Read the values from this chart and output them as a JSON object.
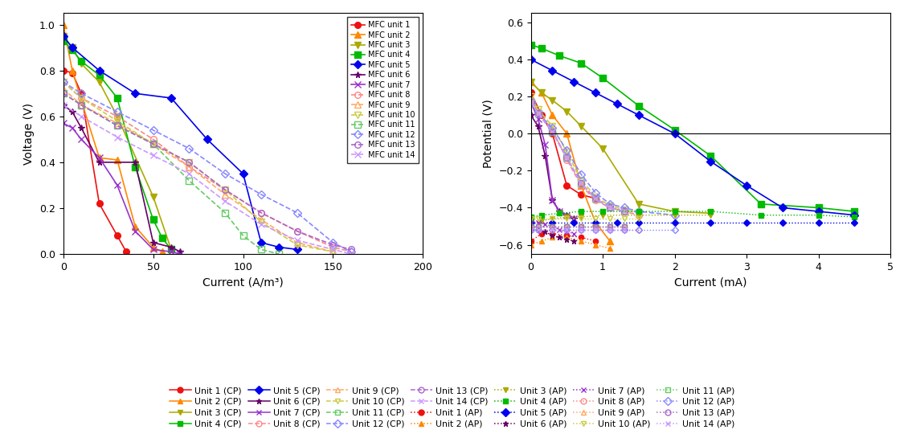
{
  "colors_solid": [
    "#EE1111",
    "#FF8800",
    "#AAAA00",
    "#00BB00",
    "#0000EE",
    "#660066",
    "#9933CC",
    "#FF8888",
    "#FFAA66",
    "#CCCC44",
    "#66CC66",
    "#8888FF",
    "#AA66CC",
    "#CC99FF"
  ],
  "solid_markers": [
    "o",
    "^",
    "v",
    "s",
    "D",
    "*",
    "x"
  ],
  "open_markers": [
    "o",
    "^",
    "v",
    "s",
    "D",
    "o",
    "x"
  ],
  "left_plot": {
    "xlabel": "Current (A/m³)",
    "ylabel": "Voltage (V)",
    "xlim": [
      0,
      200
    ],
    "ylim": [
      0,
      1.05
    ],
    "xticks": [
      0,
      50,
      100,
      150,
      200
    ],
    "yticks": [
      0.0,
      0.2,
      0.4,
      0.6,
      0.8,
      1.0
    ],
    "curves": [
      {
        "unit": 1,
        "ls": "-",
        "filled": true,
        "x": [
          0,
          5,
          10,
          20,
          30,
          35
        ],
        "y": [
          0.8,
          0.79,
          0.7,
          0.22,
          0.08,
          0.01
        ]
      },
      {
        "unit": 2,
        "ls": "-",
        "filled": true,
        "x": [
          0,
          5,
          10,
          20,
          30,
          40,
          50,
          55
        ],
        "y": [
          1.0,
          0.8,
          0.67,
          0.42,
          0.41,
          0.12,
          0.03,
          0.01
        ]
      },
      {
        "unit": 3,
        "ls": "-",
        "filled": true,
        "x": [
          0,
          5,
          10,
          20,
          30,
          50,
          60
        ],
        "y": [
          0.95,
          0.9,
          0.83,
          0.75,
          0.6,
          0.25,
          0.02
        ]
      },
      {
        "unit": 4,
        "ls": "-",
        "filled": true,
        "x": [
          0,
          5,
          10,
          20,
          30,
          40,
          50,
          55,
          60
        ],
        "y": [
          0.93,
          0.89,
          0.84,
          0.78,
          0.68,
          0.38,
          0.15,
          0.07,
          0.02
        ]
      },
      {
        "unit": 5,
        "ls": "-",
        "filled": true,
        "x": [
          0,
          5,
          20,
          40,
          60,
          80,
          100,
          110,
          120,
          130
        ],
        "y": [
          0.95,
          0.9,
          0.8,
          0.7,
          0.68,
          0.5,
          0.35,
          0.05,
          0.03,
          0.02
        ]
      },
      {
        "unit": 6,
        "ls": "-",
        "filled": true,
        "x": [
          0,
          5,
          10,
          20,
          40,
          50,
          60,
          65
        ],
        "y": [
          0.65,
          0.62,
          0.55,
          0.4,
          0.4,
          0.05,
          0.03,
          0.01
        ]
      },
      {
        "unit": 7,
        "ls": "-",
        "filled": true,
        "x": [
          0,
          5,
          10,
          20,
          30,
          40,
          50,
          60,
          65
        ],
        "y": [
          0.57,
          0.55,
          0.5,
          0.42,
          0.3,
          0.1,
          0.02,
          0.01,
          0.0
        ]
      },
      {
        "unit": 8,
        "ls": "--",
        "filled": false,
        "x": [
          0,
          10,
          30,
          50,
          70,
          90,
          110,
          130,
          150,
          160
        ],
        "y": [
          0.75,
          0.68,
          0.6,
          0.5,
          0.38,
          0.28,
          0.18,
          0.1,
          0.03,
          0.01
        ]
      },
      {
        "unit": 9,
        "ls": "--",
        "filled": false,
        "x": [
          0,
          10,
          30,
          50,
          70,
          90,
          110,
          130,
          150
        ],
        "y": [
          0.72,
          0.65,
          0.57,
          0.48,
          0.38,
          0.26,
          0.15,
          0.05,
          0.01
        ]
      },
      {
        "unit": 10,
        "ls": "--",
        "filled": false,
        "x": [
          0,
          10,
          30,
          50,
          70,
          90,
          110,
          130,
          150
        ],
        "y": [
          0.75,
          0.68,
          0.58,
          0.48,
          0.4,
          0.28,
          0.14,
          0.04,
          0.01
        ]
      },
      {
        "unit": 11,
        "ls": "--",
        "filled": false,
        "x": [
          0,
          10,
          30,
          50,
          70,
          90,
          100,
          110,
          120
        ],
        "y": [
          0.7,
          0.65,
          0.56,
          0.48,
          0.32,
          0.18,
          0.08,
          0.02,
          0.0
        ]
      },
      {
        "unit": 12,
        "ls": "--",
        "filled": false,
        "x": [
          0,
          10,
          30,
          50,
          70,
          90,
          110,
          130,
          150,
          160
        ],
        "y": [
          0.75,
          0.7,
          0.62,
          0.54,
          0.46,
          0.35,
          0.26,
          0.18,
          0.05,
          0.01
        ]
      },
      {
        "unit": 13,
        "ls": "--",
        "filled": false,
        "x": [
          0,
          10,
          30,
          50,
          70,
          90,
          110,
          130,
          150,
          160
        ],
        "y": [
          0.7,
          0.65,
          0.56,
          0.48,
          0.4,
          0.28,
          0.18,
          0.1,
          0.04,
          0.02
        ]
      },
      {
        "unit": 14,
        "ls": "--",
        "filled": false,
        "x": [
          0,
          10,
          30,
          50,
          70,
          90,
          110,
          130,
          150,
          160
        ],
        "y": [
          0.65,
          0.6,
          0.51,
          0.43,
          0.35,
          0.23,
          0.13,
          0.06,
          0.02,
          0.0
        ]
      }
    ],
    "legend_labels": [
      "MFC unit 1",
      "MFC unit 2",
      "MFC unit 3",
      "MFC unit 4",
      "MFC unit 5",
      "MFC unit 6",
      "MFC unit 7",
      "MFC unit 8",
      "MFC unit 9",
      "MFC unit 10",
      "MFC unit 11",
      "MFC unit 12",
      "MFC unit 13",
      "MFC unit 14"
    ]
  },
  "right_plot": {
    "xlabel": "Current (mA)",
    "ylabel": "Potential (V)",
    "xlim": [
      0,
      5
    ],
    "ylim": [
      -0.65,
      0.65
    ],
    "xticks": [
      0,
      1,
      2,
      3,
      4,
      5
    ],
    "yticks": [
      -0.6,
      -0.4,
      -0.2,
      0.0,
      0.2,
      0.4,
      0.6
    ],
    "cathode_curves": [
      {
        "unit": 1,
        "filled": true,
        "ls": "-",
        "x": [
          0,
          0.15,
          0.3,
          0.5,
          0.7,
          0.9
        ],
        "y": [
          0.22,
          0.1,
          0.0,
          -0.28,
          -0.33,
          -0.35
        ]
      },
      {
        "unit": 2,
        "filled": true,
        "ls": "-",
        "x": [
          0,
          0.15,
          0.3,
          0.5,
          0.7,
          0.9,
          1.1
        ],
        "y": [
          0.28,
          0.22,
          0.1,
          0.0,
          -0.28,
          -0.48,
          -0.58
        ]
      },
      {
        "unit": 3,
        "filled": true,
        "ls": "-",
        "x": [
          0,
          0.15,
          0.3,
          0.5,
          0.7,
          1.0,
          1.5,
          2.0,
          2.5
        ],
        "y": [
          0.28,
          0.22,
          0.18,
          0.12,
          0.04,
          -0.08,
          -0.38,
          -0.42,
          -0.43
        ]
      },
      {
        "unit": 4,
        "filled": true,
        "ls": "-",
        "x": [
          0,
          0.15,
          0.4,
          0.7,
          1.0,
          1.5,
          2.0,
          2.5,
          3.2,
          4.0,
          4.5
        ],
        "y": [
          0.48,
          0.46,
          0.42,
          0.38,
          0.3,
          0.15,
          0.02,
          -0.12,
          -0.38,
          -0.4,
          -0.42
        ]
      },
      {
        "unit": 5,
        "filled": true,
        "ls": "-",
        "x": [
          0,
          0.3,
          0.6,
          0.9,
          1.2,
          1.5,
          2.0,
          2.5,
          3.0,
          3.5,
          4.0,
          4.5
        ],
        "y": [
          0.4,
          0.34,
          0.28,
          0.22,
          0.16,
          0.1,
          0.0,
          -0.15,
          -0.28,
          -0.4,
          -0.42,
          -0.44
        ]
      },
      {
        "unit": 6,
        "filled": true,
        "ls": "-",
        "x": [
          0,
          0.1,
          0.2,
          0.3,
          0.4,
          0.5,
          0.6
        ],
        "y": [
          0.1,
          0.04,
          -0.12,
          -0.36,
          -0.42,
          -0.44,
          -0.46
        ]
      },
      {
        "unit": 7,
        "filled": true,
        "ls": "-",
        "x": [
          0,
          0.1,
          0.2,
          0.3,
          0.4,
          0.5,
          0.6
        ],
        "y": [
          0.17,
          0.08,
          -0.06,
          -0.36,
          -0.42,
          -0.44,
          -0.46
        ]
      },
      {
        "unit": 8,
        "filled": false,
        "ls": "--",
        "x": [
          0,
          0.1,
          0.3,
          0.5,
          0.7,
          0.9,
          1.1,
          1.3,
          1.5
        ],
        "y": [
          0.18,
          0.12,
          0.02,
          -0.14,
          -0.28,
          -0.36,
          -0.4,
          -0.42,
          -0.44
        ]
      },
      {
        "unit": 9,
        "filled": false,
        "ls": "--",
        "x": [
          0,
          0.1,
          0.3,
          0.5,
          0.7,
          0.9,
          1.1,
          1.3
        ],
        "y": [
          0.17,
          0.11,
          0.01,
          -0.13,
          -0.27,
          -0.35,
          -0.4,
          -0.42
        ]
      },
      {
        "unit": 10,
        "filled": false,
        "ls": "--",
        "x": [
          0,
          0.1,
          0.3,
          0.5,
          0.7,
          0.9,
          1.1,
          1.3,
          1.5
        ],
        "y": [
          0.2,
          0.13,
          0.04,
          -0.1,
          -0.25,
          -0.34,
          -0.39,
          -0.41,
          -0.43
        ]
      },
      {
        "unit": 11,
        "filled": false,
        "ls": "--",
        "x": [
          0,
          0.1,
          0.3,
          0.5,
          0.7,
          0.9,
          1.1,
          1.3
        ],
        "y": [
          0.17,
          0.11,
          0.01,
          -0.13,
          -0.27,
          -0.35,
          -0.4,
          -0.42
        ]
      },
      {
        "unit": 12,
        "filled": false,
        "ls": "--",
        "x": [
          0,
          0.1,
          0.3,
          0.5,
          0.7,
          0.9,
          1.1,
          1.3,
          1.5,
          2.0
        ],
        "y": [
          0.17,
          0.11,
          0.03,
          -0.09,
          -0.22,
          -0.32,
          -0.38,
          -0.4,
          -0.42,
          -0.44
        ]
      },
      {
        "unit": 13,
        "filled": false,
        "ls": "--",
        "x": [
          0,
          0.1,
          0.3,
          0.5,
          0.7,
          0.9,
          1.1,
          1.3
        ],
        "y": [
          0.17,
          0.11,
          0.01,
          -0.13,
          -0.27,
          -0.35,
          -0.4,
          -0.42
        ]
      },
      {
        "unit": 14,
        "filled": false,
        "ls": "--",
        "x": [
          0,
          0.1,
          0.3,
          0.5,
          0.7,
          0.9,
          1.1,
          1.3
        ],
        "y": [
          0.17,
          0.11,
          0.01,
          -0.13,
          -0.27,
          -0.35,
          -0.4,
          -0.42
        ]
      }
    ],
    "anode_curves": [
      {
        "unit": 1,
        "filled": true,
        "x": [
          0,
          0.15,
          0.3,
          0.5,
          0.7,
          0.9
        ],
        "y": [
          -0.58,
          -0.54,
          -0.54,
          -0.55,
          -0.56,
          -0.58
        ]
      },
      {
        "unit": 2,
        "filled": true,
        "x": [
          0,
          0.15,
          0.3,
          0.5,
          0.7,
          0.9,
          1.1
        ],
        "y": [
          -0.6,
          -0.58,
          -0.56,
          -0.56,
          -0.58,
          -0.6,
          -0.62
        ]
      },
      {
        "unit": 3,
        "filled": true,
        "x": [
          0,
          0.15,
          0.3,
          0.5,
          0.7,
          1.0,
          1.5,
          2.0,
          2.5
        ],
        "y": [
          -0.48,
          -0.47,
          -0.46,
          -0.45,
          -0.45,
          -0.44,
          -0.44,
          -0.44,
          -0.44
        ]
      },
      {
        "unit": 4,
        "filled": true,
        "x": [
          0,
          0.15,
          0.4,
          0.7,
          1.0,
          1.5,
          2.0,
          2.5,
          3.2,
          4.0,
          4.5
        ],
        "y": [
          -0.45,
          -0.44,
          -0.43,
          -0.42,
          -0.42,
          -0.42,
          -0.42,
          -0.42,
          -0.44,
          -0.44,
          -0.45
        ]
      },
      {
        "unit": 5,
        "filled": true,
        "x": [
          0,
          0.3,
          0.6,
          0.9,
          1.2,
          1.5,
          2.0,
          2.5,
          3.0,
          3.5,
          4.0,
          4.5
        ],
        "y": [
          -0.48,
          -0.48,
          -0.48,
          -0.48,
          -0.48,
          -0.48,
          -0.48,
          -0.48,
          -0.48,
          -0.48,
          -0.48,
          -0.48
        ]
      },
      {
        "unit": 6,
        "filled": true,
        "x": [
          0,
          0.1,
          0.2,
          0.3,
          0.4,
          0.5,
          0.6
        ],
        "y": [
          -0.52,
          -0.52,
          -0.53,
          -0.55,
          -0.56,
          -0.57,
          -0.58
        ]
      },
      {
        "unit": 7,
        "filled": true,
        "x": [
          0,
          0.1,
          0.2,
          0.3,
          0.4,
          0.5,
          0.6
        ],
        "y": [
          -0.48,
          -0.48,
          -0.49,
          -0.5,
          -0.52,
          -0.53,
          -0.54
        ]
      },
      {
        "unit": 8,
        "filled": false,
        "x": [
          0,
          0.1,
          0.3,
          0.5,
          0.7,
          0.9,
          1.1,
          1.3,
          1.5
        ],
        "y": [
          -0.52,
          -0.52,
          -0.52,
          -0.52,
          -0.52,
          -0.52,
          -0.52,
          -0.52,
          -0.52
        ]
      },
      {
        "unit": 9,
        "filled": false,
        "x": [
          0,
          0.1,
          0.3,
          0.5,
          0.7,
          0.9,
          1.1,
          1.3
        ],
        "y": [
          -0.5,
          -0.5,
          -0.5,
          -0.5,
          -0.5,
          -0.5,
          -0.5,
          -0.5
        ]
      },
      {
        "unit": 10,
        "filled": false,
        "x": [
          0,
          0.1,
          0.3,
          0.5,
          0.7,
          0.9,
          1.1,
          1.3,
          1.5
        ],
        "y": [
          -0.46,
          -0.46,
          -0.46,
          -0.46,
          -0.46,
          -0.46,
          -0.46,
          -0.46,
          -0.46
        ]
      },
      {
        "unit": 11,
        "filled": false,
        "x": [
          0,
          0.1,
          0.3,
          0.5,
          0.7,
          0.9,
          1.1,
          1.3
        ],
        "y": [
          -0.5,
          -0.5,
          -0.5,
          -0.5,
          -0.5,
          -0.5,
          -0.5,
          -0.5
        ]
      },
      {
        "unit": 12,
        "filled": false,
        "x": [
          0,
          0.1,
          0.3,
          0.5,
          0.7,
          0.9,
          1.1,
          1.3,
          1.5,
          2.0
        ],
        "y": [
          -0.52,
          -0.52,
          -0.52,
          -0.52,
          -0.52,
          -0.52,
          -0.52,
          -0.52,
          -0.52,
          -0.52
        ]
      },
      {
        "unit": 13,
        "filled": false,
        "x": [
          0,
          0.1,
          0.3,
          0.5,
          0.7,
          0.9,
          1.1,
          1.3
        ],
        "y": [
          -0.5,
          -0.5,
          -0.5,
          -0.5,
          -0.5,
          -0.5,
          -0.5,
          -0.5
        ]
      },
      {
        "unit": 14,
        "filled": false,
        "x": [
          0,
          0.1,
          0.3,
          0.5,
          0.7,
          0.9,
          1.1,
          1.3
        ],
        "y": [
          -0.52,
          -0.52,
          -0.52,
          -0.52,
          -0.52,
          -0.52,
          -0.52,
          -0.52
        ]
      }
    ]
  }
}
